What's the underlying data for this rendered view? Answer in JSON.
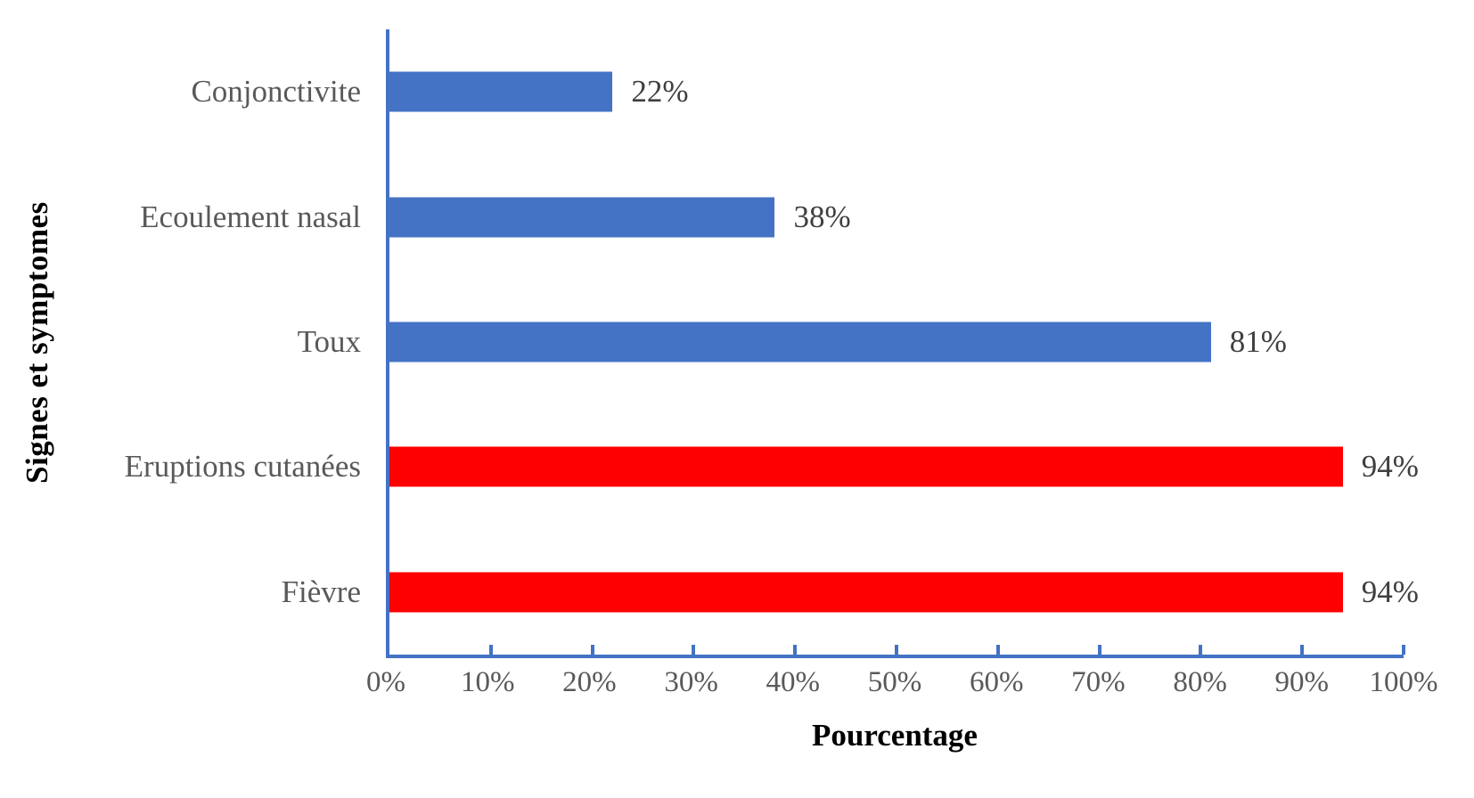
{
  "chart_data": {
    "type": "bar",
    "orientation": "horizontal",
    "title": "",
    "xlabel": "Pourcentage",
    "ylabel": "Signes et symptomes",
    "categories": [
      "Conjonctivite",
      "Ecoulement nasal",
      "Toux",
      "Eruptions cutanées",
      "Fièvre"
    ],
    "values": [
      22,
      38,
      81,
      94,
      94
    ],
    "value_labels": [
      "22%",
      "38%",
      "81%",
      "94%",
      "94%"
    ],
    "bar_colors": [
      "#4472C4",
      "#4472C4",
      "#4472C4",
      "#FF0000",
      "#FF0000"
    ],
    "x_ticks": [
      0,
      10,
      20,
      30,
      40,
      50,
      60,
      70,
      80,
      90,
      100
    ],
    "x_tick_labels": [
      "0%",
      "10%",
      "20%",
      "30%",
      "40%",
      "50%",
      "60%",
      "70%",
      "80%",
      "90%",
      "100%"
    ],
    "xlim": [
      0,
      100
    ],
    "grid": false,
    "legend": false,
    "axis_color": "#4472C4",
    "tick_label_color": "#595959",
    "category_label_color": "#595959",
    "value_label_color": "#3F3F3F",
    "axis_title_color": "#000000",
    "background_color": "#FFFFFF"
  }
}
